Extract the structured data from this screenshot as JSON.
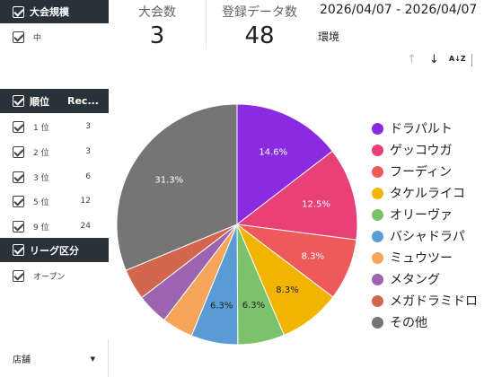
{
  "filters": {
    "size_header": "大会規模",
    "size_items": [
      {
        "label": "中"
      }
    ],
    "rank_header": "順位",
    "rank_header_col": "Rec...",
    "rank_items": [
      {
        "label": "1 位",
        "count": "3"
      },
      {
        "label": "2 位",
        "count": "3"
      },
      {
        "label": "3 位",
        "count": "6"
      },
      {
        "label": "5 位",
        "count": "12"
      },
      {
        "label": "9 位",
        "count": "24"
      }
    ],
    "league_header": "リーグ区分",
    "league_items": [
      {
        "label": "オープン"
      }
    ],
    "store_select": "店舗"
  },
  "kpi": {
    "tournaments_label": "大会数",
    "tournaments_value": "3",
    "records_label": "登録データ数",
    "records_value": "48"
  },
  "date_range": "2026/04/07 - 2026/04/07",
  "environment_label": "環境",
  "toolbar": {
    "sort_up_icon": "arrow-up-icon",
    "sort_down_icon": "arrow-down-icon",
    "az_label": "A↓Z"
  },
  "chart_data": {
    "type": "pie",
    "start_angle": "12 o'clock, clockwise",
    "slices": [
      {
        "label": "ドラパルト",
        "value": 14.6,
        "color": "#8a2be2",
        "display": "14.6%"
      },
      {
        "label": "ゲッコウガ",
        "value": 12.5,
        "color": "#e94077",
        "display": "12.5%"
      },
      {
        "label": "フーディン",
        "value": 8.3,
        "color": "#ee5a5a",
        "display": "8.3%"
      },
      {
        "label": "タケルライコ",
        "value": 8.3,
        "color": "#f1b400",
        "display": "8.3%"
      },
      {
        "label": "オリーヴァ",
        "value": 6.3,
        "color": "#7cc26a",
        "display": "6.3%"
      },
      {
        "label": "バシャドラパ",
        "value": 6.3,
        "color": "#5b9bd5",
        "display": "6.3%"
      },
      {
        "label": "ミュウツー",
        "value": 4.2,
        "color": "#f6a55a",
        "display": ""
      },
      {
        "label": "メタング",
        "value": 4.2,
        "color": "#9c64b0",
        "display": ""
      },
      {
        "label": "メガドラミドロ",
        "value": 4.2,
        "color": "#d2674d",
        "display": ""
      },
      {
        "label": "その他",
        "value": 31.3,
        "color": "#757575",
        "display": "31.3%"
      }
    ]
  }
}
